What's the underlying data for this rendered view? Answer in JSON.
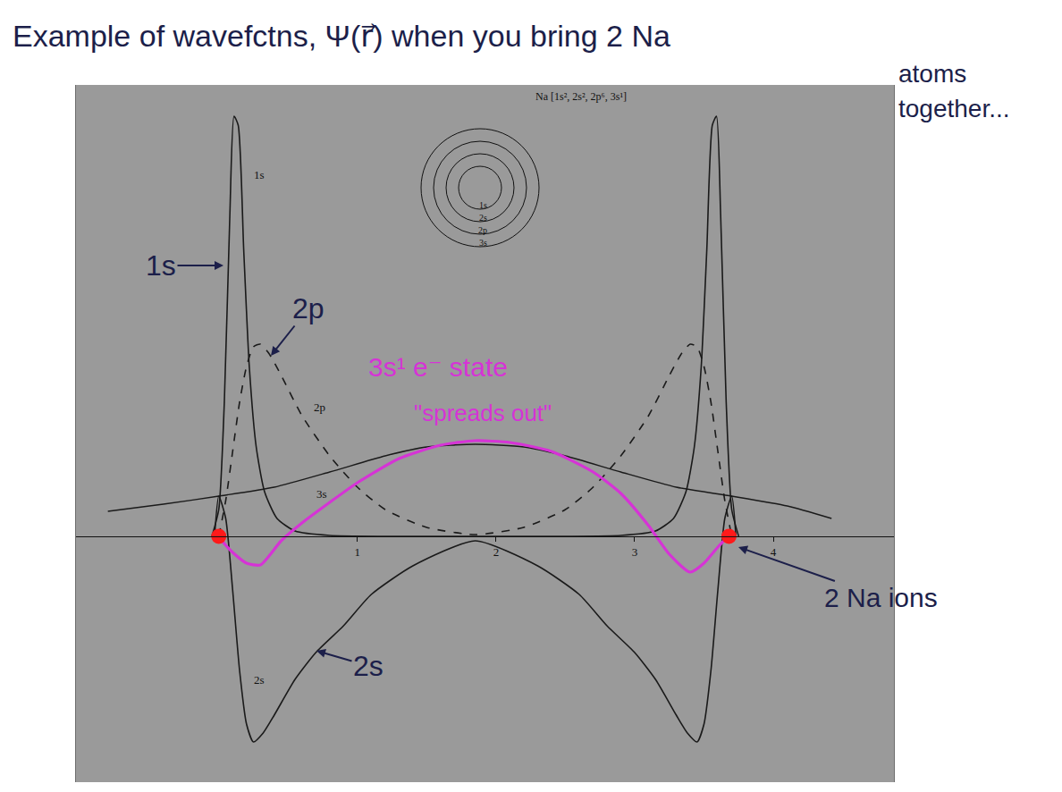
{
  "chart_data": {
    "type": "line",
    "title": "Example of wavefctns, Ψ(r⃗) when you bring 2 Na atoms together...",
    "annotations": [
      "1s",
      "2p",
      "\"spreads out\"",
      "2s",
      "Na [1s², 2s², 2p⁶, 3s¹]",
      "1s",
      "2s",
      "2p",
      "3s"
    ],
    "xlim": [
      -1.03,
      4.87
    ],
    "ylim": [
      -2.75,
      5.05
    ],
    "xticks": [
      1,
      2,
      3,
      4
    ],
    "grid": false,
    "tick_labels": "x",
    "series": [
      {
        "name": "1s",
        "color": "#1a1a1a",
        "line_style": "solid",
        "x": [
          -0.05,
          0,
          0.04,
          0.08,
          0.11,
          0.14,
          0.18,
          0.22,
          0.27,
          0.33,
          0.42,
          0.55,
          0.8,
          1.2,
          1.85,
          2.5,
          2.9,
          3.15,
          3.28,
          3.37,
          3.43,
          3.48,
          3.52,
          3.56,
          3.59,
          3.62,
          3.66,
          3.7,
          3.75
        ],
        "values": [
          0,
          0.3,
          1.5,
          3.6,
          4.7,
          4.6,
          3.2,
          1.9,
          1.0,
          0.5,
          0.2,
          0.06,
          0.01,
          0,
          0,
          0,
          0.01,
          0.06,
          0.2,
          0.5,
          1.0,
          1.9,
          3.2,
          4.6,
          4.7,
          3.6,
          1.5,
          0.3,
          0
        ]
      },
      {
        "name": "2s",
        "color": "#1a1a1a",
        "line_style": "solid",
        "x": [
          -0.03,
          0,
          0.05,
          0.1,
          0.15,
          0.2,
          0.25,
          0.32,
          0.4,
          0.55,
          0.7,
          0.9,
          1.1,
          1.4,
          1.85,
          2.3,
          2.6,
          2.8,
          3.0,
          3.15,
          3.3,
          3.38,
          3.45,
          3.5,
          3.55,
          3.6,
          3.65,
          3.7,
          3.73
        ],
        "values": [
          0,
          0.45,
          0.2,
          -0.6,
          -1.5,
          -2.1,
          -2.3,
          -2.2,
          -2.0,
          -1.6,
          -1.3,
          -1.0,
          -0.65,
          -0.33,
          -0.05,
          -0.33,
          -0.65,
          -1.0,
          -1.3,
          -1.6,
          -2.0,
          -2.2,
          -2.3,
          -2.1,
          -1.5,
          -0.6,
          0.2,
          0.45,
          0
        ]
      },
      {
        "name": "2p",
        "color": "#1a1a1a",
        "line_style": "dash",
        "x": [
          0,
          0.05,
          0.1,
          0.15,
          0.2,
          0.25,
          0.3,
          0.36,
          0.45,
          0.6,
          0.8,
          1.0,
          1.2,
          1.5,
          1.85,
          2.2,
          2.5,
          2.7,
          2.9,
          3.1,
          3.25,
          3.34,
          3.4,
          3.45,
          3.5,
          3.55,
          3.6,
          3.65,
          3.7
        ],
        "values": [
          0,
          0.4,
          0.95,
          1.5,
          1.9,
          2.12,
          2.15,
          2.05,
          1.8,
          1.35,
          0.9,
          0.55,
          0.3,
          0.1,
          0.02,
          0.1,
          0.3,
          0.55,
          0.9,
          1.35,
          1.8,
          2.05,
          2.15,
          2.12,
          1.9,
          1.5,
          0.95,
          0.4,
          0
        ]
      },
      {
        "name": "3s",
        "color": "#1a1a1a",
        "line_style": "solid",
        "x": [
          -0.8,
          -0.4,
          0,
          0.4,
          0.8,
          1.2,
          1.5,
          1.85,
          2.2,
          2.5,
          2.9,
          3.3,
          3.7,
          4.1,
          4.42
        ],
        "values": [
          0.28,
          0.36,
          0.45,
          0.55,
          0.72,
          0.9,
          1.0,
          1.03,
          1.0,
          0.9,
          0.72,
          0.55,
          0.45,
          0.34,
          0.2
        ]
      },
      {
        "name": "3s¹ e⁻ state",
        "color": "#d633d6",
        "line_style": "solid",
        "x": [
          0,
          0.05,
          0.1,
          0.2,
          0.3,
          0.45,
          0.6,
          0.8,
          1.0,
          1.3,
          1.6,
          1.85,
          2.1,
          2.4,
          2.7,
          2.9,
          3.1,
          3.25,
          3.4,
          3.5,
          3.6,
          3.65,
          3.68
        ],
        "values": [
          0,
          -0.1,
          -0.18,
          -0.3,
          -0.32,
          -0.05,
          0.15,
          0.38,
          0.6,
          0.87,
          1.02,
          1.07,
          1.05,
          0.95,
          0.72,
          0.48,
          0.12,
          -0.2,
          -0.4,
          -0.3,
          -0.12,
          -0.04,
          0
        ]
      },
      {
        "name": "2 Na ions",
        "type": "scatter",
        "marker": "circle",
        "color": "#ff1a1a",
        "x": [
          0,
          3.68
        ],
        "values": [
          0,
          0
        ]
      }
    ]
  }
}
